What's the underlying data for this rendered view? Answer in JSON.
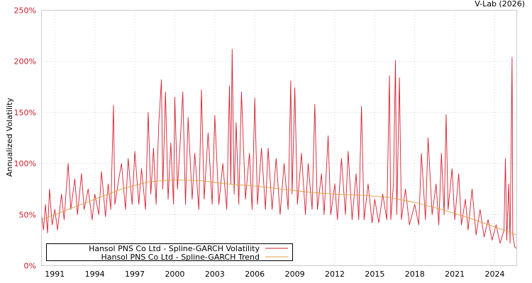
{
  "chart_data": {
    "type": "line",
    "credit": "V-Lab (2026)",
    "ylabel": "Annualized Volatility",
    "xlabel": "",
    "xlim": [
      1990.0,
      2025.65
    ],
    "ylim": [
      0,
      250
    ],
    "x_ticks": [
      "1991",
      "1994",
      "1997",
      "2000",
      "2003",
      "2006",
      "2009",
      "2012",
      "2015",
      "2018",
      "2021",
      "2024"
    ],
    "x_tick_values": [
      1991,
      1994,
      1997,
      2000,
      2003,
      2006,
      2009,
      2012,
      2015,
      2018,
      2021,
      2024
    ],
    "y_ticks": [
      "0%",
      "50%",
      "100%",
      "150%",
      "200%",
      "250%"
    ],
    "y_tick_values": [
      0,
      50,
      100,
      150,
      200,
      250
    ],
    "grid": true,
    "legend_position": "bottom-left",
    "colors": {
      "volatility": "#d62030",
      "trend": "#e0a040",
      "ytick": "#d01c2a"
    },
    "series": [
      {
        "name": "Hansol PNS Co Ltd - Spline-GARCH Volatility",
        "key": "volatility",
        "points": [
          [
            1990.0,
            50
          ],
          [
            1990.15,
            35
          ],
          [
            1990.3,
            60
          ],
          [
            1990.45,
            32
          ],
          [
            1990.6,
            75
          ],
          [
            1990.8,
            40
          ],
          [
            1991.0,
            55
          ],
          [
            1991.2,
            35
          ],
          [
            1991.5,
            70
          ],
          [
            1991.7,
            45
          ],
          [
            1992.0,
            100
          ],
          [
            1992.2,
            55
          ],
          [
            1992.5,
            85
          ],
          [
            1992.7,
            50
          ],
          [
            1993.0,
            90
          ],
          [
            1993.2,
            55
          ],
          [
            1993.5,
            75
          ],
          [
            1993.8,
            45
          ],
          [
            1994.0,
            70
          ],
          [
            1994.3,
            50
          ],
          [
            1994.5,
            92
          ],
          [
            1994.8,
            48
          ],
          [
            1995.0,
            80
          ],
          [
            1995.2,
            55
          ],
          [
            1995.4,
            157
          ],
          [
            1995.5,
            60
          ],
          [
            1995.8,
            85
          ],
          [
            1996.0,
            100
          ],
          [
            1996.3,
            55
          ],
          [
            1996.5,
            105
          ],
          [
            1996.8,
            60
          ],
          [
            1997.0,
            112
          ],
          [
            1997.3,
            60
          ],
          [
            1997.5,
            95
          ],
          [
            1997.8,
            55
          ],
          [
            1998.0,
            150
          ],
          [
            1998.2,
            70
          ],
          [
            1998.4,
            115
          ],
          [
            1998.6,
            60
          ],
          [
            1998.8,
            140
          ],
          [
            1999.0,
            182
          ],
          [
            1999.1,
            75
          ],
          [
            1999.3,
            170
          ],
          [
            1999.5,
            65
          ],
          [
            1999.7,
            120
          ],
          [
            1999.9,
            60
          ],
          [
            2000.0,
            165
          ],
          [
            2000.2,
            75
          ],
          [
            2000.4,
            120
          ],
          [
            2000.6,
            170
          ],
          [
            2000.8,
            60
          ],
          [
            2001.0,
            145
          ],
          [
            2001.3,
            65
          ],
          [
            2001.5,
            110
          ],
          [
            2001.8,
            55
          ],
          [
            2002.0,
            172
          ],
          [
            2002.2,
            65
          ],
          [
            2002.5,
            130
          ],
          [
            2002.8,
            60
          ],
          [
            2003.0,
            147
          ],
          [
            2003.3,
            60
          ],
          [
            2003.6,
            100
          ],
          [
            2003.9,
            55
          ],
          [
            2004.1,
            176
          ],
          [
            2004.2,
            80
          ],
          [
            2004.3,
            212
          ],
          [
            2004.45,
            70
          ],
          [
            2004.6,
            140
          ],
          [
            2004.8,
            60
          ],
          [
            2005.0,
            170
          ],
          [
            2005.3,
            65
          ],
          [
            2005.6,
            110
          ],
          [
            2005.8,
            55
          ],
          [
            2006.0,
            164
          ],
          [
            2006.2,
            60
          ],
          [
            2006.5,
            115
          ],
          [
            2006.8,
            55
          ],
          [
            2007.0,
            115
          ],
          [
            2007.3,
            55
          ],
          [
            2007.6,
            105
          ],
          [
            2007.9,
            50
          ],
          [
            2008.2,
            100
          ],
          [
            2008.5,
            55
          ],
          [
            2008.7,
            181
          ],
          [
            2008.8,
            70
          ],
          [
            2009.0,
            174
          ],
          [
            2009.2,
            60
          ],
          [
            2009.5,
            110
          ],
          [
            2009.8,
            50
          ],
          [
            2010.0,
            100
          ],
          [
            2010.3,
            55
          ],
          [
            2010.5,
            158
          ],
          [
            2010.7,
            55
          ],
          [
            2011.0,
            90
          ],
          [
            2011.2,
            50
          ],
          [
            2011.5,
            127
          ],
          [
            2011.7,
            50
          ],
          [
            2012.0,
            80
          ],
          [
            2012.2,
            45
          ],
          [
            2012.5,
            105
          ],
          [
            2012.8,
            50
          ],
          [
            2013.0,
            112
          ],
          [
            2013.3,
            45
          ],
          [
            2013.6,
            90
          ],
          [
            2013.8,
            45
          ],
          [
            2014.0,
            156
          ],
          [
            2014.2,
            45
          ],
          [
            2014.5,
            80
          ],
          [
            2014.8,
            42
          ],
          [
            2015.0,
            65
          ],
          [
            2015.3,
            42
          ],
          [
            2015.6,
            70
          ],
          [
            2015.9,
            45
          ],
          [
            2016.1,
            186
          ],
          [
            2016.2,
            45
          ],
          [
            2016.4,
            80
          ],
          [
            2016.55,
            201
          ],
          [
            2016.65,
            50
          ],
          [
            2016.85,
            184
          ],
          [
            2017.0,
            45
          ],
          [
            2017.3,
            75
          ],
          [
            2017.6,
            40
          ],
          [
            2018.0,
            60
          ],
          [
            2018.3,
            40
          ],
          [
            2018.5,
            110
          ],
          [
            2018.8,
            45
          ],
          [
            2019.0,
            125
          ],
          [
            2019.3,
            50
          ],
          [
            2019.6,
            80
          ],
          [
            2019.8,
            40
          ],
          [
            2020.0,
            110
          ],
          [
            2020.2,
            50
          ],
          [
            2020.35,
            148
          ],
          [
            2020.5,
            55
          ],
          [
            2020.8,
            95
          ],
          [
            2021.0,
            45
          ],
          [
            2021.3,
            90
          ],
          [
            2021.5,
            40
          ],
          [
            2021.8,
            65
          ],
          [
            2022.0,
            35
          ],
          [
            2022.3,
            75
          ],
          [
            2022.6,
            30
          ],
          [
            2022.9,
            55
          ],
          [
            2023.2,
            28
          ],
          [
            2023.5,
            45
          ],
          [
            2023.8,
            25
          ],
          [
            2024.1,
            40
          ],
          [
            2024.4,
            22
          ],
          [
            2024.7,
            35
          ],
          [
            2024.8,
            105
          ],
          [
            2024.9,
            25
          ],
          [
            2025.05,
            80
          ],
          [
            2025.15,
            22
          ],
          [
            2025.3,
            204
          ],
          [
            2025.35,
            30
          ],
          [
            2025.5,
            18
          ],
          [
            2025.65,
            17
          ]
        ]
      },
      {
        "name": "Hansol PNS Co Ltd - Spline-GARCH Trend",
        "key": "trend",
        "points": [
          [
            1990.0,
            45
          ],
          [
            1992,
            55
          ],
          [
            1994,
            65
          ],
          [
            1996,
            75
          ],
          [
            1998,
            82
          ],
          [
            2000,
            84
          ],
          [
            2002,
            83
          ],
          [
            2004,
            80
          ],
          [
            2006,
            78
          ],
          [
            2008,
            75
          ],
          [
            2010,
            72
          ],
          [
            2012,
            70
          ],
          [
            2014,
            69
          ],
          [
            2016,
            67
          ],
          [
            2018,
            62
          ],
          [
            2020,
            55
          ],
          [
            2022,
            47
          ],
          [
            2024,
            38
          ],
          [
            2025.65,
            30
          ]
        ]
      }
    ]
  }
}
